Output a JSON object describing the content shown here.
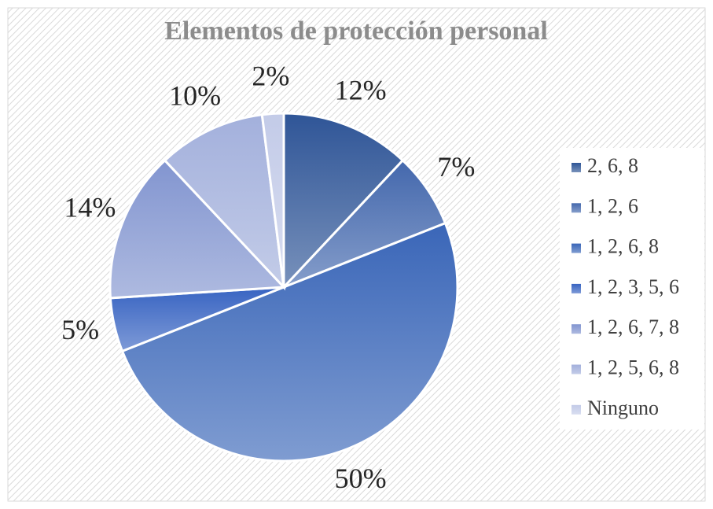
{
  "chart_data": {
    "type": "pie",
    "title": "Elementos de protección personal",
    "categories": [
      "2, 6, 8",
      "1, 2, 6",
      "1, 2, 6, 8",
      "1, 2, 3, 5, 6",
      "1, 2, 6, 7, 8",
      "1, 2, 5, 6, 8",
      "Ninguno"
    ],
    "values": [
      12,
      7,
      50,
      5,
      14,
      10,
      2
    ],
    "value_labels": [
      "12%",
      "7%",
      "50%",
      "5%",
      "14%",
      "10%",
      "2%"
    ],
    "colors": [
      "#2f5597",
      "#4468ad",
      "#3a66b8",
      "#3864c2",
      "#8295d0",
      "#a3b0dc",
      "#c3cbe8"
    ],
    "legend": "right"
  }
}
